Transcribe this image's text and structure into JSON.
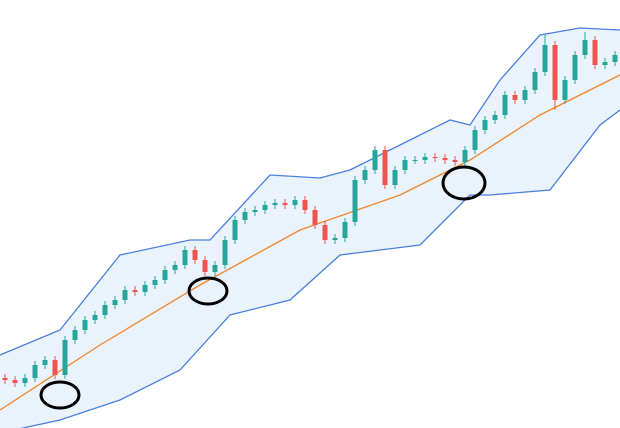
{
  "chart_data": {
    "type": "candlestick",
    "xlim": [
      -0.5,
      61.5
    ],
    "ylim": [
      0,
      428
    ],
    "up_color": "#26a69a",
    "down_color": "#ef5350",
    "band_fill": "#eaf3fc",
    "open": [
      50,
      48,
      45,
      50,
      63,
      68,
      53,
      88,
      98,
      108,
      113,
      123,
      128,
      138,
      136,
      143,
      148,
      158,
      163,
      178,
      168,
      156,
      163,
      188,
      208,
      216,
      218,
      223,
      225,
      223,
      228,
      218,
      203,
      188,
      190,
      206,
      248,
      258,
      278,
      243,
      258,
      268,
      268,
      271,
      270,
      268,
      266,
      278,
      298,
      308,
      313,
      333,
      328,
      338,
      356,
      383,
      328,
      348,
      373,
      388,
      363,
      366
    ],
    "high": [
      54,
      52,
      54,
      67,
      72,
      72,
      92,
      102,
      112,
      117,
      127,
      132,
      142,
      142,
      147,
      152,
      162,
      167,
      182,
      182,
      172,
      167,
      192,
      212,
      220,
      222,
      227,
      229,
      229,
      232,
      232,
      222,
      207,
      194,
      210,
      252,
      262,
      282,
      282,
      262,
      272,
      272,
      275,
      275,
      274,
      272,
      282,
      302,
      312,
      317,
      337,
      337,
      342,
      360,
      393,
      387,
      352,
      377,
      396,
      392,
      370,
      377
    ],
    "low": [
      44,
      41,
      41,
      46,
      59,
      49,
      49,
      84,
      94,
      104,
      109,
      119,
      124,
      132,
      132,
      139,
      144,
      154,
      159,
      164,
      152,
      152,
      159,
      184,
      204,
      212,
      214,
      219,
      219,
      219,
      214,
      199,
      184,
      184,
      186,
      202,
      244,
      254,
      239,
      239,
      254,
      264,
      264,
      266,
      264,
      262,
      262,
      274,
      294,
      304,
      309,
      324,
      324,
      334,
      352,
      318,
      324,
      344,
      369,
      359,
      359,
      362
    ],
    "close": [
      48,
      45,
      50,
      63,
      68,
      53,
      88,
      98,
      108,
      113,
      123,
      128,
      138,
      136,
      143,
      148,
      158,
      163,
      178,
      168,
      156,
      163,
      188,
      208,
      216,
      218,
      223,
      225,
      223,
      228,
      218,
      203,
      188,
      190,
      206,
      248,
      258,
      278,
      243,
      258,
      268,
      268,
      271,
      270,
      268,
      266,
      278,
      298,
      308,
      313,
      333,
      328,
      338,
      356,
      383,
      328,
      348,
      373,
      388,
      363,
      366,
      373
    ],
    "series": [
      {
        "color": "#4a7fe0",
        "x": [
          -0.5,
          5.5,
          11.5,
          18.5,
          20.5,
          26.5,
          31.5,
          34.5,
          39.5,
          44.5,
          46.5,
          49.5,
          53.5,
          57.5,
          61.5
        ],
        "values": [
          73,
          98,
          173,
          188,
          188,
          253,
          250,
          258,
          283,
          308,
          303,
          348,
          393,
          400,
          398
        ]
      },
      {
        "color": "#f0862e",
        "x": [
          -0.5,
          9.5,
          19.5,
          29.5,
          39.5,
          46.5,
          53.5,
          61.5
        ],
        "values": [
          18,
          83,
          143,
          198,
          233,
          268,
          313,
          353
        ]
      },
      {
        "color": "#4a7fe0",
        "x": [
          -0.5,
          5.5,
          11.5,
          17.5,
          22.5,
          28.5,
          33.5,
          37.5,
          41.5,
          46.5,
          48.5,
          54.5,
          59.5,
          61.5
        ],
        "values": [
          -5,
          8,
          28,
          58,
          113,
          128,
          173,
          178,
          183,
          233,
          233,
          238,
          303,
          318
        ]
      }
    ]
  }
}
